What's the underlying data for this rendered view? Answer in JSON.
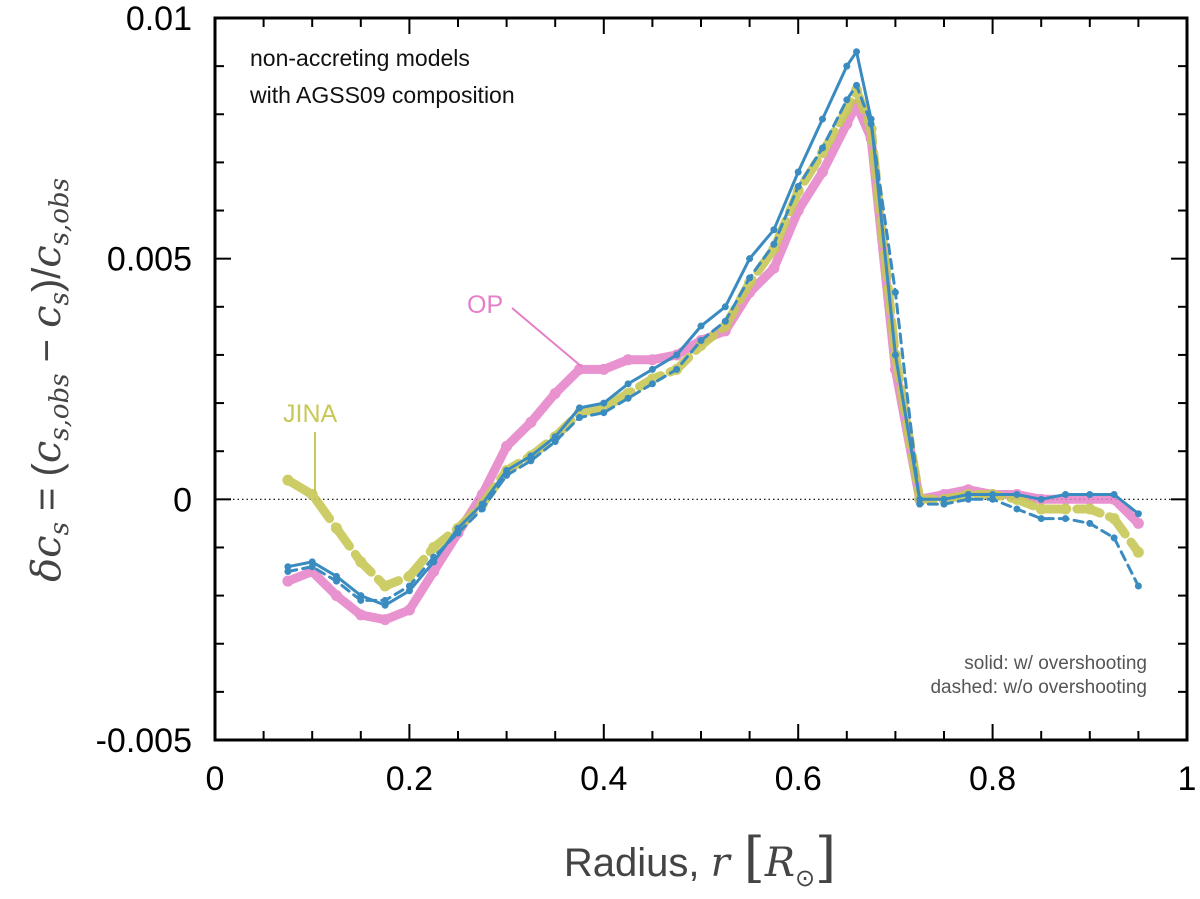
{
  "chart_data": {
    "type": "line",
    "title": "",
    "xlabel_text": "Radius, ",
    "xlabel_var": "r",
    "xlabel_unit": "R",
    "xlabel_sun": "⊙",
    "ylabel_delta": "δ",
    "ylabel_c": "c",
    "ylabel_s": "s",
    "ylabel_eq": " = (",
    "ylabel_sub_obs": "s,obs",
    "ylabel_minus": " − ",
    "ylabel_close": ")/",
    "xlim": [
      0,
      1
    ],
    "ylim": [
      -0.005,
      0.01
    ],
    "xticks": [
      0,
      0.2,
      0.4,
      0.6,
      0.8,
      1
    ],
    "xtick_labels": [
      "0",
      "0.2",
      "0.4",
      "0.6",
      "0.8",
      "1"
    ],
    "yticks": [
      -0.005,
      0,
      0.005,
      0.01
    ],
    "ytick_labels": [
      "-0.005",
      "0",
      "0.005",
      "0.01"
    ],
    "annotation_top_line1": "non-accreting models",
    "annotation_top_line2": "with AGSS09 composition",
    "legend_line1": "solid: w/ overshooting",
    "legend_line2": "dashed: w/o overshooting",
    "colors": {
      "op": "#e47fc8",
      "jina": "#c8c857",
      "blue": "#3a8bc0"
    },
    "series": [
      {
        "name": "OP",
        "label": "OP",
        "style": "solid-thick",
        "color": "#e47fc8",
        "x": [
          0.075,
          0.1,
          0.125,
          0.15,
          0.175,
          0.2,
          0.225,
          0.25,
          0.275,
          0.3,
          0.325,
          0.35,
          0.375,
          0.4,
          0.425,
          0.45,
          0.475,
          0.5,
          0.525,
          0.55,
          0.575,
          0.6,
          0.625,
          0.65,
          0.66,
          0.675,
          0.7,
          0.725,
          0.75,
          0.775,
          0.8,
          0.825,
          0.85,
          0.875,
          0.9,
          0.925,
          0.95
        ],
        "y": [
          -0.0017,
          -0.0015,
          -0.002,
          -0.0024,
          -0.0025,
          -0.0023,
          -0.0015,
          -0.0007,
          0.0001,
          0.0011,
          0.0016,
          0.0022,
          0.0027,
          0.0027,
          0.0029,
          0.0029,
          0.003,
          0.0033,
          0.0035,
          0.0043,
          0.0048,
          0.006,
          0.0068,
          0.0078,
          0.0082,
          0.0075,
          0.0027,
          0.0,
          0.0001,
          0.0002,
          0.0001,
          0.0001,
          0.0,
          0.0,
          0.0,
          0.0,
          -0.0005
        ]
      },
      {
        "name": "JINA",
        "label": "JINA",
        "style": "dashed-thick",
        "color": "#c8c857",
        "x": [
          0.075,
          0.1,
          0.125,
          0.15,
          0.175,
          0.2,
          0.225,
          0.25,
          0.275,
          0.3,
          0.325,
          0.35,
          0.375,
          0.4,
          0.425,
          0.45,
          0.475,
          0.5,
          0.525,
          0.55,
          0.575,
          0.6,
          0.625,
          0.65,
          0.66,
          0.675,
          0.7,
          0.725,
          0.75,
          0.775,
          0.8,
          0.825,
          0.85,
          0.875,
          0.9,
          0.925,
          0.95
        ],
        "y": [
          0.0004,
          0.0001,
          -0.0006,
          -0.0013,
          -0.0018,
          -0.0016,
          -0.001,
          -0.0006,
          -0.0001,
          0.0006,
          0.0009,
          0.0013,
          0.0018,
          0.0019,
          0.0022,
          0.0025,
          0.0027,
          0.0032,
          0.0036,
          0.0045,
          0.0052,
          0.0064,
          0.0072,
          0.0081,
          0.0085,
          0.0077,
          0.003,
          0.0,
          0.0,
          0.0001,
          0.0001,
          0.0,
          -0.0002,
          -0.0002,
          -0.0002,
          -0.0004,
          -0.0011
        ]
      },
      {
        "name": "blue-solid",
        "label": "",
        "style": "solid-thin",
        "color": "#3a8bc0",
        "x": [
          0.075,
          0.1,
          0.125,
          0.15,
          0.175,
          0.2,
          0.225,
          0.25,
          0.275,
          0.3,
          0.325,
          0.35,
          0.375,
          0.4,
          0.425,
          0.45,
          0.475,
          0.5,
          0.525,
          0.55,
          0.575,
          0.6,
          0.625,
          0.65,
          0.66,
          0.675,
          0.7,
          0.725,
          0.75,
          0.775,
          0.8,
          0.825,
          0.85,
          0.875,
          0.9,
          0.925,
          0.95
        ],
        "y": [
          -0.0014,
          -0.0013,
          -0.0016,
          -0.002,
          -0.0022,
          -0.0019,
          -0.0013,
          -0.0006,
          -0.0001,
          0.0006,
          0.0009,
          0.0013,
          0.0019,
          0.002,
          0.0024,
          0.0027,
          0.003,
          0.0036,
          0.004,
          0.005,
          0.0056,
          0.0068,
          0.0079,
          0.009,
          0.0093,
          0.0079,
          0.003,
          0.0,
          0.0,
          0.0001,
          0.0001,
          0.0001,
          0.0,
          0.0001,
          0.0001,
          0.0001,
          -0.0003
        ]
      },
      {
        "name": "blue-dashed",
        "label": "",
        "style": "dashed-thin",
        "color": "#3a8bc0",
        "x": [
          0.075,
          0.1,
          0.125,
          0.15,
          0.175,
          0.2,
          0.225,
          0.25,
          0.275,
          0.3,
          0.325,
          0.35,
          0.375,
          0.4,
          0.425,
          0.45,
          0.475,
          0.5,
          0.525,
          0.55,
          0.575,
          0.6,
          0.625,
          0.65,
          0.66,
          0.675,
          0.7,
          0.725,
          0.75,
          0.775,
          0.8,
          0.825,
          0.85,
          0.875,
          0.9,
          0.925,
          0.95
        ],
        "y": [
          -0.0015,
          -0.0014,
          -0.0017,
          -0.0021,
          -0.0021,
          -0.0018,
          -0.0012,
          -0.0007,
          -0.0002,
          0.0005,
          0.0008,
          0.0012,
          0.0017,
          0.0018,
          0.0021,
          0.0024,
          0.0027,
          0.0033,
          0.0037,
          0.0046,
          0.0053,
          0.0065,
          0.0073,
          0.0083,
          0.0086,
          0.0078,
          0.0043,
          -0.0001,
          -0.0001,
          0.0,
          0.0,
          -0.0002,
          -0.0004,
          -0.0004,
          -0.0005,
          -0.0008,
          -0.0018
        ]
      }
    ]
  }
}
